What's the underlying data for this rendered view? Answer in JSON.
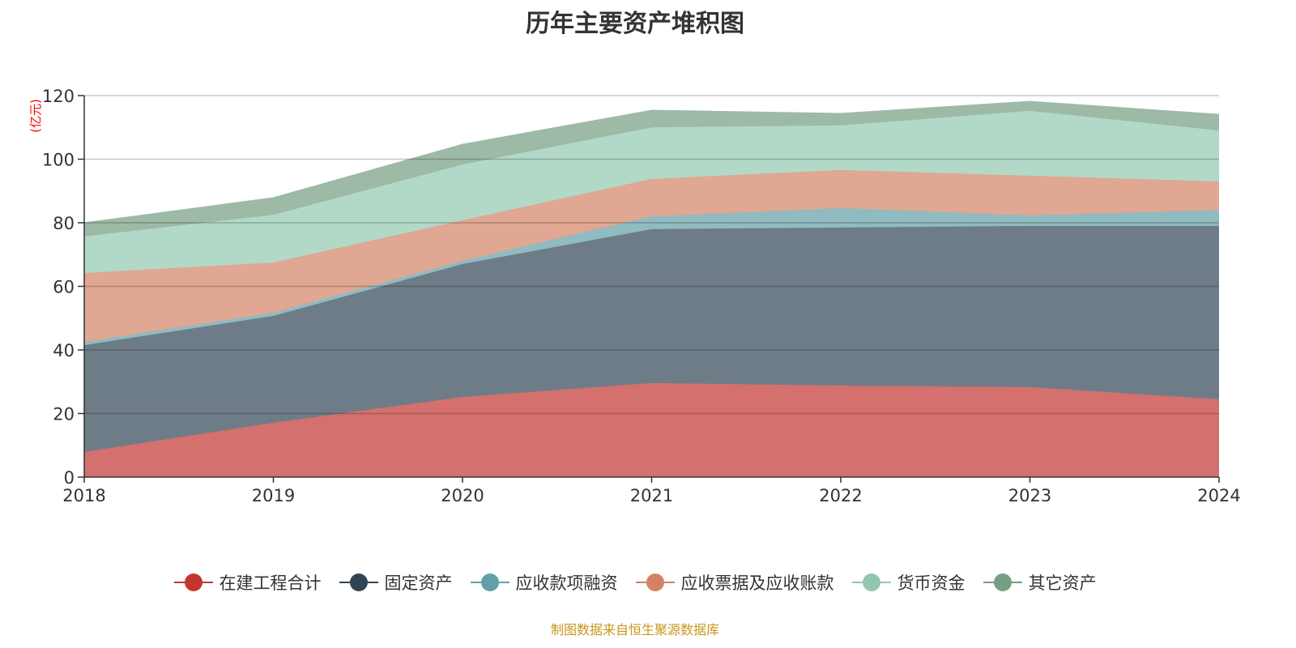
{
  "chart_data": {
    "type": "area",
    "stacked": true,
    "title": "历年主要资产堆积图",
    "ylabel": "(亿元)",
    "xlabel": "",
    "ylim": [
      0,
      120
    ],
    "yticks": [
      0,
      20,
      40,
      60,
      80,
      100,
      120
    ],
    "grid": true,
    "legend_position": "bottom",
    "categories": [
      "2018",
      "2019",
      "2020",
      "2021",
      "2022",
      "2023",
      "2024"
    ],
    "series": [
      {
        "name": "在建工程合计",
        "color": "#c23531",
        "fill": "#d4706e",
        "values": [
          7.9,
          17.1,
          25.2,
          29.6,
          28.8,
          28.3,
          24.5
        ]
      },
      {
        "name": "固定资产",
        "color": "#2f4554",
        "fill": "#6e7c87",
        "values": [
          33.6,
          33.6,
          41.8,
          48.4,
          49.7,
          50.7,
          54.5
        ]
      },
      {
        "name": "应收款项融资",
        "color": "#61a0a8",
        "fill": "#8fbbc1",
        "values": [
          1.0,
          1.0,
          1.0,
          4.0,
          6.1,
          3.3,
          5.0
        ]
      },
      {
        "name": "应收票据及应收账款",
        "color": "#d48265",
        "fill": "#e0a792",
        "values": [
          21.7,
          15.8,
          12.8,
          11.8,
          12.0,
          12.5,
          9.0
        ]
      },
      {
        "name": "货币资金",
        "color": "#91c7ae",
        "fill": "#b2d9c7",
        "values": [
          11.5,
          15.0,
          17.5,
          16.2,
          14.0,
          20.4,
          16.0
        ]
      },
      {
        "name": "其它资产",
        "color": "#749f83",
        "fill": "#9dbaa7",
        "values": [
          4.3,
          5.4,
          6.4,
          5.4,
          3.8,
          3.0,
          5.1
        ]
      }
    ],
    "source": "制图数据来自恒生聚源数据库"
  }
}
